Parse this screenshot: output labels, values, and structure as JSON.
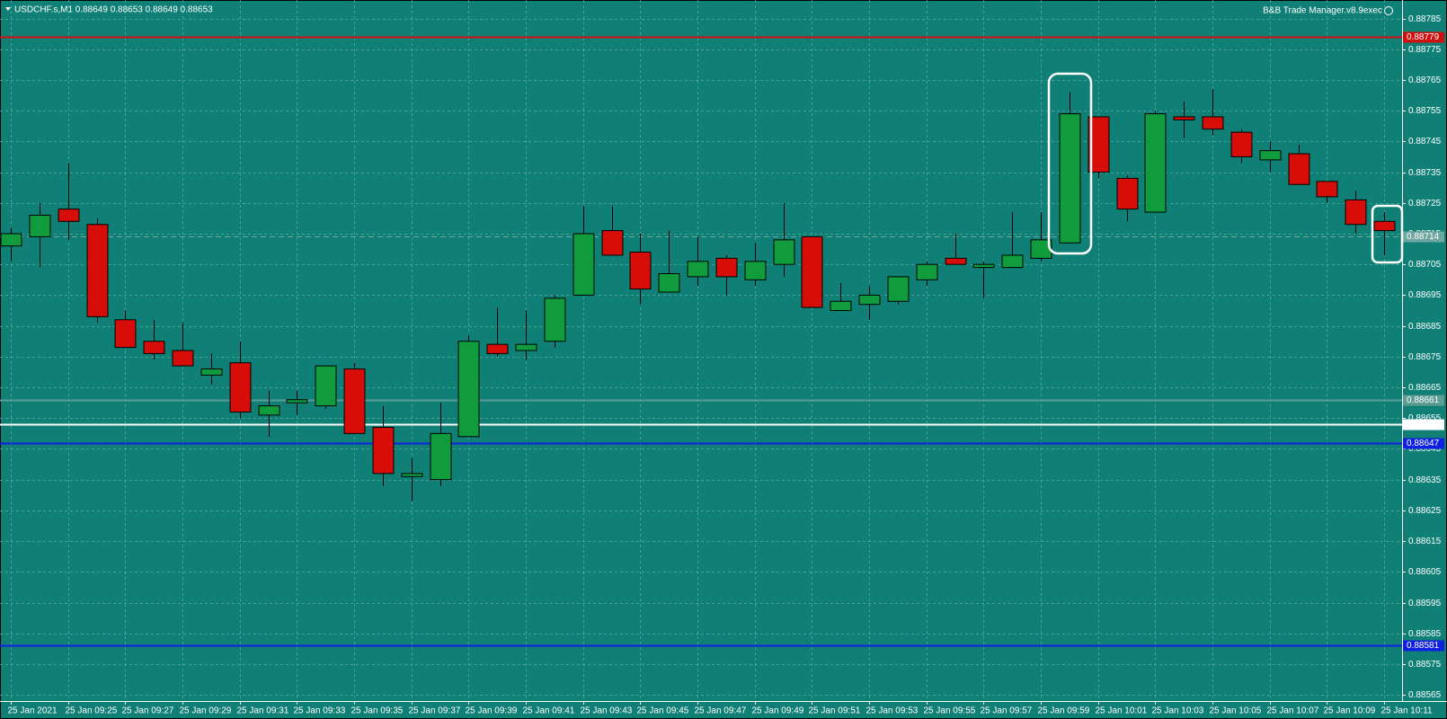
{
  "chart_data": {
    "type": "candlestick",
    "title": "USDCHF.s,M1  0.88649 0.88653 0.88649 0.88653",
    "indicator": "B&B Trade Manager.v8.9exec",
    "categories": [
      "25 Jan 2021",
      null,
      "25 Jan 09:25",
      null,
      "25 Jan 09:27",
      null,
      "25 Jan 09:29",
      null,
      "25 Jan 09:31",
      null,
      "25 Jan 09:33",
      null,
      "25 Jan 09:35",
      null,
      "25 Jan 09:37",
      null,
      "25 Jan 09:39",
      null,
      "25 Jan 09:41",
      null,
      "25 Jan 09:43",
      null,
      "25 Jan 09:45",
      null,
      "25 Jan 09:47",
      null,
      "25 Jan 09:49",
      null,
      "25 Jan 09:51",
      null,
      "25 Jan 09:53",
      null,
      "25 Jan 09:55",
      null,
      "25 Jan 09:57",
      null,
      "25 Jan 09:59",
      null,
      "25 Jan 10:01",
      null,
      "25 Jan 10:03",
      null,
      "25 Jan 10:05",
      null,
      "25 Jan 10:07",
      null,
      "25 Jan 10:09",
      null,
      "25 Jan 10:11"
    ],
    "open": [
      0.88711,
      0.88714,
      0.88723,
      0.88718,
      0.88687,
      0.8868,
      0.88677,
      0.88669,
      0.88673,
      0.88656,
      0.8866,
      0.88659,
      0.88671,
      0.88652,
      0.88636,
      0.88635,
      0.88649,
      0.88679,
      0.88677,
      0.8868,
      0.88695,
      0.88716,
      0.88709,
      0.88696,
      0.88701,
      0.88707,
      0.887,
      0.88705,
      0.88714,
      0.8869,
      0.88692,
      0.88693,
      0.887,
      0.88707,
      0.88704,
      0.88704,
      0.88707,
      0.88712,
      0.88753,
      0.88733,
      0.88722,
      0.88753,
      0.88753,
      0.88748,
      0.88739,
      0.88741,
      0.88732,
      0.88726,
      0.88719
    ],
    "high": [
      0.88717,
      0.88725,
      0.88738,
      0.8872,
      0.8869,
      0.88687,
      0.88686,
      0.88676,
      0.8868,
      0.88664,
      0.88664,
      0.88672,
      0.88673,
      0.88659,
      0.88642,
      0.8866,
      0.88682,
      0.88691,
      0.8869,
      0.88695,
      0.88724,
      0.88724,
      0.88715,
      0.88716,
      0.88714,
      0.88708,
      0.88712,
      0.88725,
      0.88714,
      0.88699,
      0.88698,
      0.88701,
      0.88706,
      0.88715,
      0.88706,
      0.88722,
      0.88722,
      0.88761,
      0.88753,
      0.88734,
      0.88755,
      0.88758,
      0.88762,
      0.88749,
      0.88745,
      0.88744,
      0.88732,
      0.88729,
      0.88722
    ],
    "low": [
      0.88706,
      0.88704,
      0.88713,
      0.88686,
      0.88678,
      0.88674,
      0.88672,
      0.88666,
      0.88655,
      0.88649,
      0.88656,
      0.88658,
      0.8865,
      0.88633,
      0.88628,
      0.88633,
      0.88649,
      0.88675,
      0.88674,
      0.88678,
      0.88695,
      0.88708,
      0.88692,
      0.88696,
      0.88698,
      0.88695,
      0.88698,
      0.88701,
      0.88691,
      0.8869,
      0.88687,
      0.88692,
      0.88698,
      0.88705,
      0.88694,
      0.88704,
      0.88706,
      0.88712,
      0.88733,
      0.88719,
      0.88722,
      0.88746,
      0.88747,
      0.88738,
      0.88735,
      0.88731,
      0.88725,
      0.88715,
      0.88708
    ],
    "close": [
      0.88715,
      0.88721,
      0.88719,
      0.88688,
      0.88678,
      0.88676,
      0.88672,
      0.88671,
      0.88657,
      0.88659,
      0.88661,
      0.88672,
      0.8865,
      0.88637,
      0.88637,
      0.8865,
      0.8868,
      0.88676,
      0.88679,
      0.88694,
      0.88715,
      0.88708,
      0.88697,
      0.88702,
      0.88706,
      0.88701,
      0.88706,
      0.88713,
      0.88691,
      0.88693,
      0.88695,
      0.88701,
      0.88705,
      0.88705,
      0.88705,
      0.88708,
      0.88713,
      0.88754,
      0.88735,
      0.88723,
      0.88754,
      0.88752,
      0.88749,
      0.8874,
      0.88742,
      0.88731,
      0.88727,
      0.88718,
      0.88716
    ],
    "up_color": "#109c3c",
    "down_color": "#d60d08",
    "ylim": [
      0.88563,
      0.88791
    ],
    "yticks": [
      0.88565,
      0.88575,
      0.88585,
      0.88595,
      0.88605,
      0.88615,
      0.88625,
      0.88635,
      0.88645,
      0.88655,
      0.88665,
      0.88675,
      0.88685,
      0.88695,
      0.88705,
      0.88715,
      0.88725,
      0.88735,
      0.88745,
      0.88755,
      0.88765,
      0.88775,
      0.88785
    ],
    "grid": true,
    "levels": [
      {
        "value": 0.88779,
        "color": "#d01010"
      },
      {
        "value": 0.88714,
        "color": "#6fa6a0",
        "dashed": true
      },
      {
        "value": 0.88661,
        "color": "#5e9c96"
      },
      {
        "value": 0.88653,
        "color": "#ffffff"
      },
      {
        "value": 0.88647,
        "color": "#1020e0"
      },
      {
        "value": 0.88581,
        "color": "#1020e0"
      }
    ]
  }
}
